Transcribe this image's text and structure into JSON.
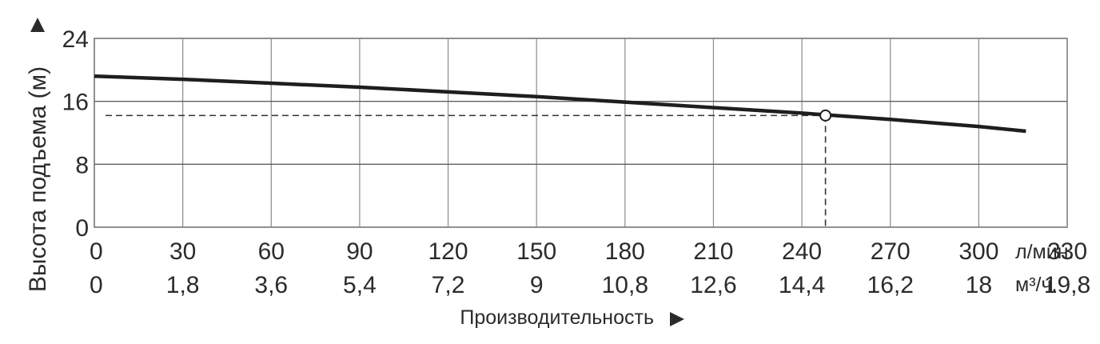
{
  "chart_data": {
    "type": "line",
    "ylabel": "Высота подъема (м)",
    "xlabel": "Производительность",
    "x_unit_primary": "л/мин.",
    "x_unit_secondary": "м³/ч.",
    "xlim": [
      0,
      330
    ],
    "ylim": [
      0,
      24
    ],
    "x_ticks": [
      0,
      30,
      60,
      90,
      120,
      150,
      180,
      210,
      240,
      270,
      300,
      330
    ],
    "x_tick_labels": [
      "0",
      "30",
      "60",
      "90",
      "120",
      "150",
      "180",
      "210",
      "240",
      "270",
      "300",
      "330"
    ],
    "x2_tick_labels": [
      "0",
      "1,8",
      "3,6",
      "5,4",
      "7,2",
      "9",
      "10,8",
      "12,6",
      "14,4",
      "16,2",
      "18",
      "19,8"
    ],
    "y_ticks": [
      0,
      8,
      16,
      24
    ],
    "y_tick_labels": [
      "0",
      "8",
      "16",
      "24"
    ],
    "grid": true,
    "series": [
      {
        "x": [
          0,
          30,
          60,
          90,
          120,
          150,
          180,
          210,
          240,
          270,
          300,
          316
        ],
        "y": [
          19.2,
          18.8,
          18.3,
          17.8,
          17.2,
          16.6,
          15.9,
          15.2,
          14.5,
          13.7,
          12.8,
          12.2
        ]
      }
    ],
    "operating_point": {
      "x": 248,
      "y": 14.2
    }
  }
}
